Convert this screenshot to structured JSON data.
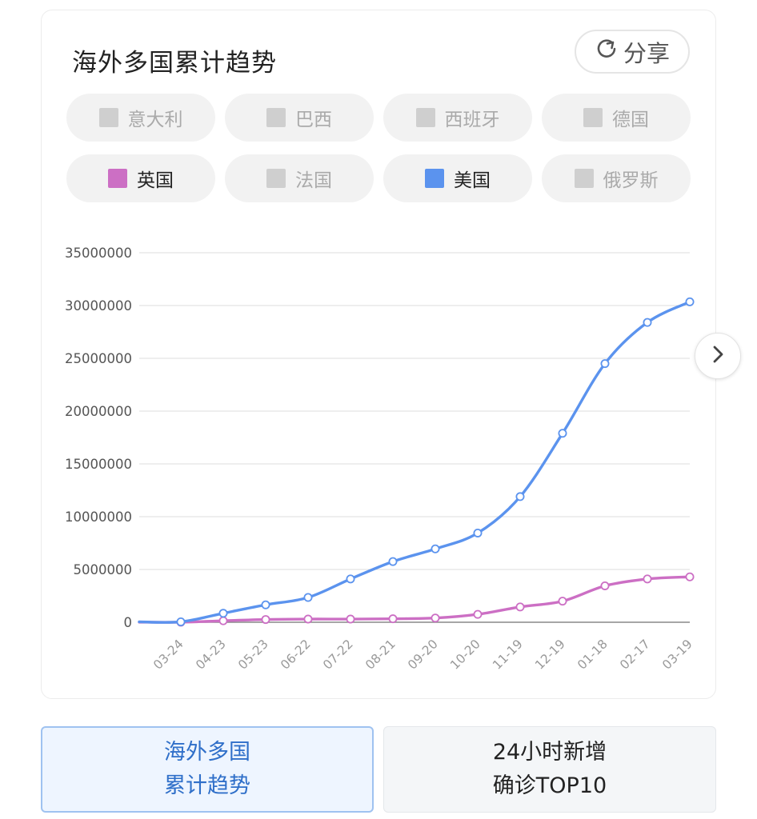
{
  "card": {
    "title": "海外多国累计趋势",
    "share_label": "分享"
  },
  "legend": [
    {
      "label": "意大利",
      "active": false,
      "color": "#cfcfcf"
    },
    {
      "label": "巴西",
      "active": false,
      "color": "#cfcfcf"
    },
    {
      "label": "西班牙",
      "active": false,
      "color": "#cfcfcf"
    },
    {
      "label": "德国",
      "active": false,
      "color": "#cfcfcf"
    },
    {
      "label": "英国",
      "active": true,
      "color": "#cc6fc4"
    },
    {
      "label": "法国",
      "active": false,
      "color": "#cfcfcf"
    },
    {
      "label": "美国",
      "active": true,
      "color": "#5b93ee"
    },
    {
      "label": "俄罗斯",
      "active": false,
      "color": "#cfcfcf"
    }
  ],
  "chart_data": {
    "type": "line",
    "x": [
      "03-24",
      "04-23",
      "05-23",
      "06-22",
      "07-22",
      "08-21",
      "09-20",
      "10-20",
      "11-19",
      "12-19",
      "01-18",
      "02-17",
      "03-19"
    ],
    "x_first_value_offset": true,
    "yticks": [
      "0",
      "5000000",
      "10000000",
      "15000000",
      "20000000",
      "25000000",
      "30000000",
      "35000000"
    ],
    "ylim": [
      0,
      35000000
    ],
    "grid": true,
    "series": [
      {
        "name": "美国",
        "color": "#5b93ee",
        "values": [
          40000,
          850000,
          1650000,
          2350000,
          4100000,
          5750000,
          6950000,
          8450000,
          11900000,
          17900000,
          24500000,
          28400000,
          30350000
        ]
      },
      {
        "name": "英国",
        "color": "#cc6fc4",
        "values": [
          5000,
          140000,
          260000,
          300000,
          300000,
          330000,
          400000,
          750000,
          1450000,
          2000000,
          3450000,
          4100000,
          4300000
        ]
      }
    ]
  },
  "tabs": [
    {
      "line1": "海外多国",
      "line2": "累计趋势",
      "active": true
    },
    {
      "line1": "24小时新增",
      "line2": "确诊TOP10",
      "active": false
    }
  ]
}
